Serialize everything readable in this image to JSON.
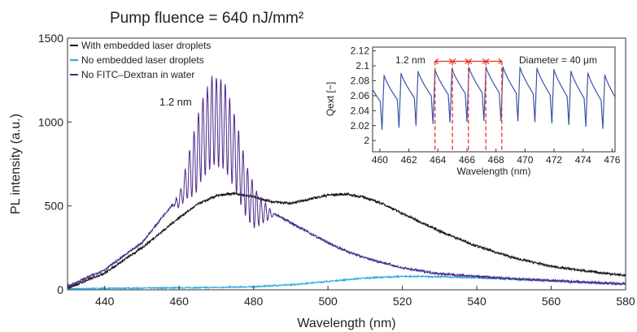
{
  "chart_data": [
    {
      "type": "line",
      "title": "Pump fluence = 640 nJ/mm²",
      "xlabel": "Wavelength (nm)",
      "ylabel": "PL intensity (a.u.)",
      "xlim": [
        430,
        580
      ],
      "ylim": [
        0,
        1500
      ],
      "xticks": [
        440,
        460,
        480,
        500,
        520,
        540,
        560,
        580
      ],
      "yticks": [
        0,
        500,
        1000,
        1500
      ],
      "grid": false,
      "legend_position": "top-left",
      "annotation": "1.2 nm",
      "annotation_x": 472,
      "annotation_y": 1070,
      "series": [
        {
          "name": "With embedded laser droplets",
          "color": "#1a1a1a",
          "x": [
            430,
            440,
            450,
            460,
            465,
            470,
            475,
            480,
            485,
            490,
            495,
            500,
            505,
            510,
            515,
            520,
            530,
            540,
            550,
            560,
            570,
            580
          ],
          "values": [
            10,
            100,
            250,
            430,
            510,
            560,
            575,
            555,
            525,
            515,
            540,
            565,
            570,
            550,
            510,
            455,
            350,
            260,
            190,
            140,
            110,
            85
          ]
        },
        {
          "name": "No embedded laser droplets",
          "color": "#29a9e0",
          "x": [
            430,
            440,
            450,
            460,
            470,
            480,
            490,
            500,
            510,
            520,
            530,
            540,
            550,
            560,
            570,
            580
          ],
          "values": [
            5,
            8,
            10,
            12,
            14,
            18,
            30,
            50,
            70,
            80,
            78,
            72,
            62,
            52,
            42,
            35
          ]
        },
        {
          "name": "No FITC–Dextran in water",
          "color": "#4b2a8a",
          "x": [
            430,
            440,
            450,
            460,
            463,
            466,
            469,
            472,
            475,
            478,
            481,
            485,
            490,
            495,
            500,
            505,
            510,
            520,
            530,
            540,
            550,
            560,
            570,
            580
          ],
          "values": [
            20,
            120,
            280,
            560,
            820,
            1080,
            1230,
            1200,
            1000,
            720,
            560,
            460,
            400,
            340,
            280,
            230,
            190,
            130,
            95,
            80,
            65,
            55,
            45,
            35
          ],
          "modulation_period_nm": 1.2
        }
      ]
    },
    {
      "type": "line",
      "title": "",
      "xlabel": "Wavelength (nm)",
      "ylabel": "Qext [−]",
      "xlim": [
        459.5,
        476.2
      ],
      "ylim": [
        1.985,
        2.125
      ],
      "xticks": [
        460,
        462,
        464,
        466,
        468,
        470,
        472,
        474,
        476
      ],
      "yticks": [
        2.0,
        2.02,
        2.04,
        2.06,
        2.08,
        2.1,
        2.12
      ],
      "ytick_labels": [
        "2",
        "2.02",
        "2.04",
        "2.06",
        "2.08",
        "2.1",
        "2.12"
      ],
      "grid": false,
      "annotations": [
        "1.2 nm",
        "Diameter = 40 μm"
      ],
      "resonances_nm": [
        463.8,
        465.0,
        466.1,
        467.3,
        468.4
      ],
      "series": [
        {
          "color": "#3a56a6",
          "peak_period_nm": 1.17,
          "peak_value": 2.093,
          "dip_value": 2.02
        }
      ]
    }
  ]
}
